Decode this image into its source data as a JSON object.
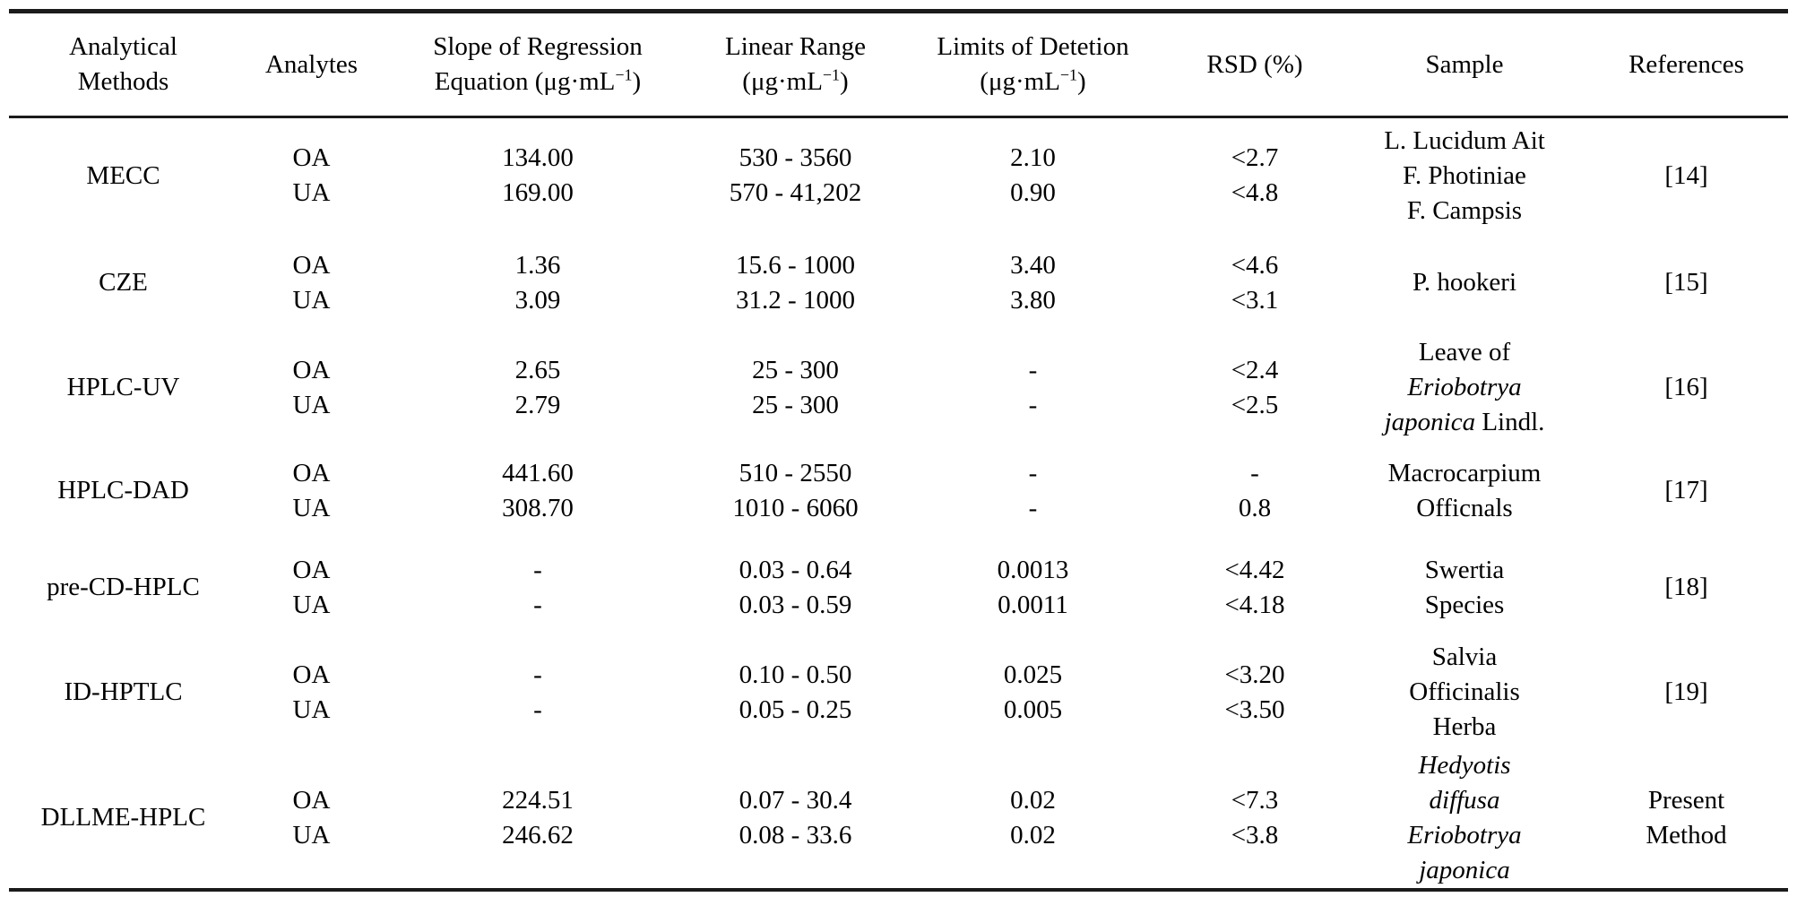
{
  "table": {
    "columns": [
      {
        "id": "analytical-methods",
        "lines": [
          "Analytical",
          "Methods"
        ]
      },
      {
        "id": "analytes",
        "lines": [
          "Analytes"
        ]
      },
      {
        "id": "slope",
        "lines": [
          "Slope of Regression"
        ],
        "unit": {
          "pre": "Equation (μg·mL",
          "sup": "−1",
          "post": ")"
        }
      },
      {
        "id": "linear-range",
        "lines": [
          "Linear Range"
        ],
        "unit": {
          "pre": "(μg·mL",
          "sup": "−1",
          "post": ")"
        }
      },
      {
        "id": "lod",
        "lines": [
          "Limits of Detetion"
        ],
        "unit": {
          "pre": "(μg·mL",
          "sup": "−1",
          "post": ")"
        }
      },
      {
        "id": "rsd",
        "lines": [
          "RSD (%)"
        ]
      },
      {
        "id": "sample",
        "lines": [
          "Sample"
        ]
      },
      {
        "id": "references",
        "lines": [
          "References"
        ]
      }
    ],
    "rows": [
      {
        "method": "MECC",
        "analytes": [
          "OA",
          "UA"
        ],
        "slope": [
          "134.00",
          "169.00"
        ],
        "linear_range": [
          "530 - 3560",
          "570 - 41,202"
        ],
        "lod": [
          "2.10",
          "0.90"
        ],
        "rsd": [
          "<2.7",
          "<4.8"
        ],
        "sample": [
          [
            {
              "t": "L. Lucidum Ait",
              "i": false
            }
          ],
          [
            {
              "t": "F. Photiniae",
              "i": false
            }
          ],
          [
            {
              "t": "F. Campsis",
              "i": false
            }
          ]
        ],
        "reference": [
          "[14]"
        ]
      },
      {
        "method": "CZE",
        "analytes": [
          "OA",
          "UA"
        ],
        "slope": [
          "1.36",
          "3.09"
        ],
        "linear_range": [
          "15.6 - 1000",
          "31.2 - 1000"
        ],
        "lod": [
          "3.40",
          "3.80"
        ],
        "rsd": [
          "<4.6",
          "<3.1"
        ],
        "sample": [
          [
            {
              "t": "P. hookeri",
              "i": false
            }
          ]
        ],
        "reference": [
          "[15]"
        ]
      },
      {
        "method": "HPLC-UV",
        "analytes": [
          "OA",
          "UA"
        ],
        "slope": [
          "2.65",
          "2.79"
        ],
        "linear_range": [
          "25 - 300",
          "25 - 300"
        ],
        "lod": [
          "-",
          "-"
        ],
        "rsd": [
          "<2.4",
          "<2.5"
        ],
        "sample": [
          [
            {
              "t": "Leave of",
              "i": false
            }
          ],
          [
            {
              "t": "Eriobotrya",
              "i": true
            }
          ],
          [
            {
              "t": "japonica",
              "i": true
            },
            {
              "t": " Lindl.",
              "i": false
            }
          ]
        ],
        "reference": [
          "[16]"
        ]
      },
      {
        "method": "HPLC-DAD",
        "analytes": [
          "OA",
          "UA"
        ],
        "slope": [
          "441.60",
          "308.70"
        ],
        "linear_range": [
          "510 - 2550",
          "1010 - 6060"
        ],
        "lod": [
          "-",
          "-"
        ],
        "rsd": [
          "-",
          "0.8"
        ],
        "sample": [
          [
            {
              "t": "Macrocarpium",
              "i": false
            }
          ],
          [
            {
              "t": "Officnals",
              "i": false
            }
          ]
        ],
        "reference": [
          "[17]"
        ]
      },
      {
        "method": "pre-CD-HPLC",
        "analytes": [
          "OA",
          "UA"
        ],
        "slope": [
          "-",
          "-"
        ],
        "linear_range": [
          "0.03 - 0.64",
          "0.03 - 0.59"
        ],
        "lod": [
          "0.0013",
          "0.0011"
        ],
        "rsd": [
          "<4.42",
          "<4.18"
        ],
        "sample": [
          [
            {
              "t": "Swertia",
              "i": false
            }
          ],
          [
            {
              "t": "Species",
              "i": false
            }
          ]
        ],
        "reference": [
          "[18]"
        ]
      },
      {
        "method": "ID-HPTLC",
        "analytes": [
          "OA",
          "UA"
        ],
        "slope": [
          "-",
          "-"
        ],
        "linear_range": [
          "0.10 - 0.50",
          "0.05 - 0.25"
        ],
        "lod": [
          "0.025",
          "0.005"
        ],
        "rsd": [
          "<3.20",
          "<3.50"
        ],
        "sample": [
          [
            {
              "t": "Salvia",
              "i": false
            }
          ],
          [
            {
              "t": "Officinalis",
              "i": false
            }
          ],
          [
            {
              "t": "Herba",
              "i": false
            }
          ]
        ],
        "reference": [
          "[19]"
        ]
      },
      {
        "method": "DLLME-HPLC",
        "analytes": [
          "OA",
          "UA"
        ],
        "slope": [
          "224.51",
          "246.62"
        ],
        "linear_range": [
          "0.07 - 30.4",
          "0.08 - 33.6"
        ],
        "lod": [
          "0.02",
          "0.02"
        ],
        "rsd": [
          "<7.3",
          "<3.8"
        ],
        "sample": [
          [
            {
              "t": "Hedyotis",
              "i": true
            }
          ],
          [
            {
              "t": "diffusa",
              "i": true
            }
          ],
          [
            {
              "t": "Eriobotrya",
              "i": true
            }
          ],
          [
            {
              "t": "japonica",
              "i": true
            }
          ]
        ],
        "reference": [
          "Present",
          "Method"
        ]
      }
    ]
  }
}
